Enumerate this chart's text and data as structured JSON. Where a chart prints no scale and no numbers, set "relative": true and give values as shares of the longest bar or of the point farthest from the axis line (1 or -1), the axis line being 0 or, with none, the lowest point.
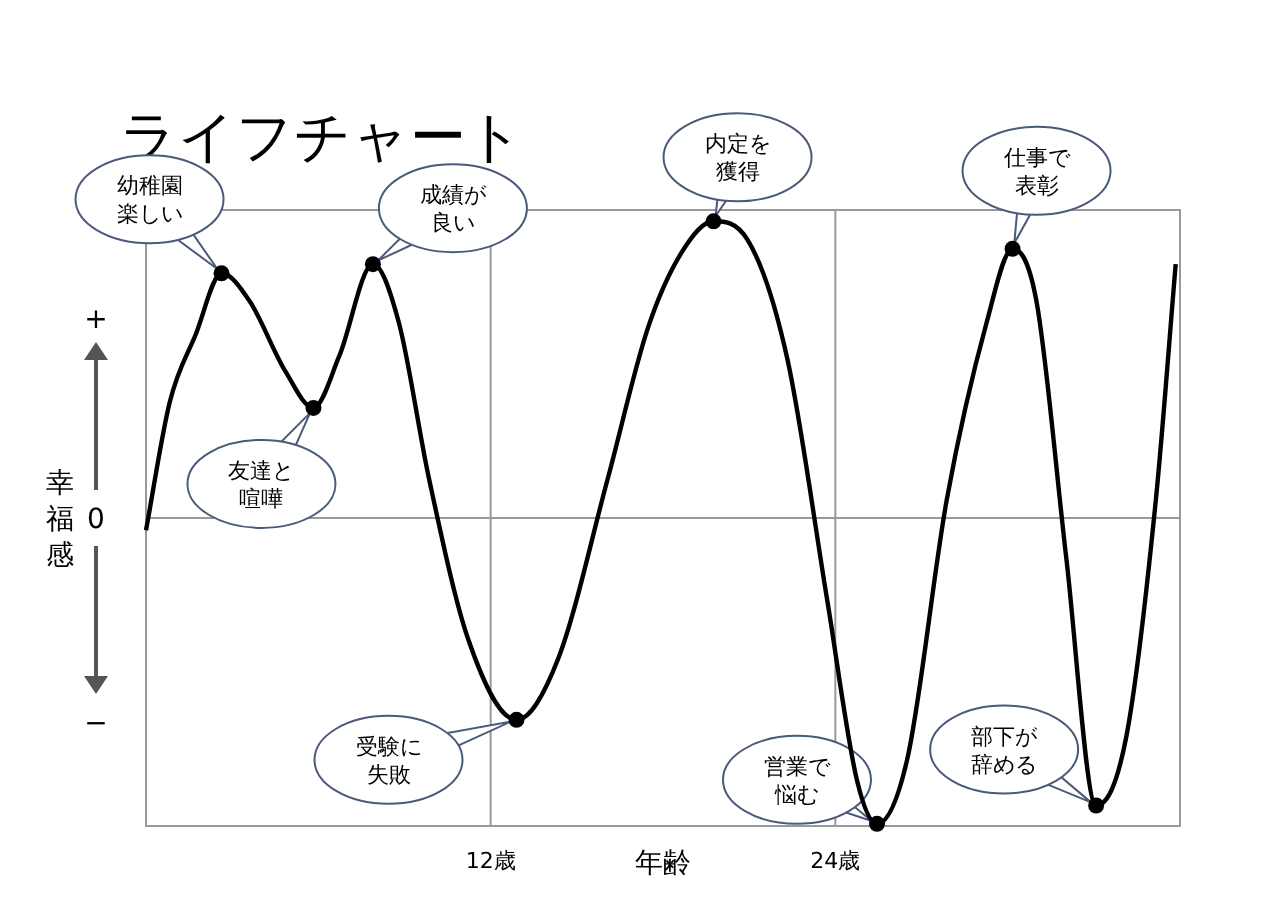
{
  "chart_data": {
    "type": "line",
    "title": "ライフチャート",
    "xlabel": "年齢",
    "ylabel": "幸福感",
    "xlim": [
      0,
      36
    ],
    "xticks": [
      {
        "value": 12,
        "label": "12歳"
      },
      {
        "value": 24,
        "label": "24歳"
      }
    ],
    "relative": true,
    "grid": "x",
    "ref_lines": [
      {
        "axis": "y",
        "value": 0,
        "color": "#999999"
      }
    ],
    "series": [
      {
        "color": "#000000",
        "marker": "none",
        "x": [
          0,
          0.83,
          1.73,
          2.63,
          3.6,
          4.85,
          5.83,
          6.73,
          7.9,
          8.8,
          9.85,
          11.23,
          12.9,
          14.35,
          16.08,
          17.47,
          18.66,
          19.76,
          20.94,
          22.33,
          23.72,
          24.76,
          25.45,
          26.5,
          27.88,
          29.27,
          30.17,
          31.0,
          32.04,
          33.08,
          34.12,
          35.16,
          35.85
        ],
        "values": [
          -0.04,
          0.38,
          0.6,
          0.8,
          0.71,
          0.48,
          0.36,
          0.53,
          0.83,
          0.64,
          0.13,
          -0.4,
          -0.66,
          -0.46,
          0.13,
          0.62,
          0.87,
          0.97,
          0.91,
          0.52,
          -0.27,
          -0.86,
          -1,
          -0.79,
          0.06,
          0.64,
          0.88,
          0.71,
          -0.13,
          -0.94,
          -0.72,
          0.06,
          0.83
        ]
      },
      {
        "type": "scatter",
        "color": "#000000",
        "marker": "circle",
        "x": [
          2.63,
          5.83,
          7.9,
          12.9,
          19.76,
          25.45,
          30.17,
          33.08
        ],
        "values": [
          0.8,
          0.36,
          0.83,
          -0.66,
          0.97,
          -1,
          0.88,
          -0.94
        ]
      }
    ],
    "annotations": [
      {
        "text": "幼稚園楽しい",
        "x": 2.63,
        "y": 0.8
      },
      {
        "text": "友達と喧嘩",
        "x": 5.83,
        "y": 0.36
      },
      {
        "text": "成績が良い",
        "x": 7.9,
        "y": 0.83
      },
      {
        "text": "受験に失敗",
        "x": 12.9,
        "y": -0.66
      },
      {
        "text": "内定を獲得",
        "x": 19.76,
        "y": 0.97
      },
      {
        "text": "営業で悩む",
        "x": 25.45,
        "y": -1
      },
      {
        "text": "仕事で表彰",
        "x": 30.17,
        "y": 0.88
      },
      {
        "text": "部下が辞める",
        "x": 33.08,
        "y": -0.94
      },
      "+",
      "0",
      "−"
    ]
  }
}
